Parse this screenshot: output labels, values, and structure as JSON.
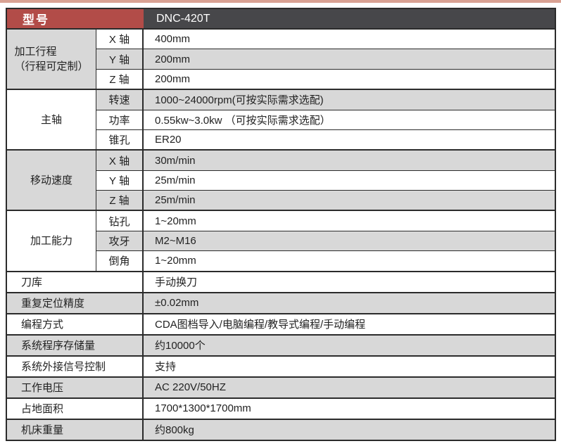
{
  "colors": {
    "accent_red": "#b24c48",
    "header_dark": "#47474a",
    "row_gray": "#d8d8d8",
    "border_dark": "#2b2b2b",
    "top_strip": "#d9a193",
    "text": "#222222"
  },
  "header": {
    "model_label": "型号",
    "model_value": "DNC-420T"
  },
  "groups": [
    {
      "label": "加工行程",
      "label_note": "（行程可定制）",
      "rows": [
        {
          "sub": "X 轴",
          "value": "400mm"
        },
        {
          "sub": "Y 轴",
          "value": "200mm"
        },
        {
          "sub": "Z 轴",
          "value": "200mm"
        }
      ]
    },
    {
      "label": "主轴",
      "rows": [
        {
          "sub": "转速",
          "value": "1000~24000rpm(可按实际需求选配)"
        },
        {
          "sub": "功率",
          "value": "0.55kw~3.0kw （可按实际需求选配）"
        },
        {
          "sub": "锥孔",
          "value": "ER20"
        }
      ]
    },
    {
      "label": "移动速度",
      "rows": [
        {
          "sub": "X 轴",
          "value": "30m/min"
        },
        {
          "sub": "Y 轴",
          "value": "25m/min"
        },
        {
          "sub": "Z 轴",
          "value": "25m/min"
        }
      ]
    },
    {
      "label": "加工能力",
      "rows": [
        {
          "sub": "钻孔",
          "value": "1~20mm"
        },
        {
          "sub": "攻牙",
          "value": "M2~M16"
        },
        {
          "sub": "倒角",
          "value": "1~20mm"
        }
      ]
    }
  ],
  "rows": [
    {
      "label": "刀库",
      "value": "手动换刀"
    },
    {
      "label": "重复定位精度",
      "value": "±0.02mm"
    },
    {
      "label": "编程方式",
      "value": "CDA图档导入/电脑编程/教导式编程/手动编程"
    },
    {
      "label": "系统程序存储量",
      "value": "约10000个"
    },
    {
      "label": "系统外接信号控制",
      "value": "支持"
    },
    {
      "label": "工作电压",
      "value": "AC 220V/50HZ"
    },
    {
      "label": "占地面积",
      "value": "1700*1300*1700mm"
    },
    {
      "label": "机床重量",
      "value": "约800kg"
    }
  ]
}
